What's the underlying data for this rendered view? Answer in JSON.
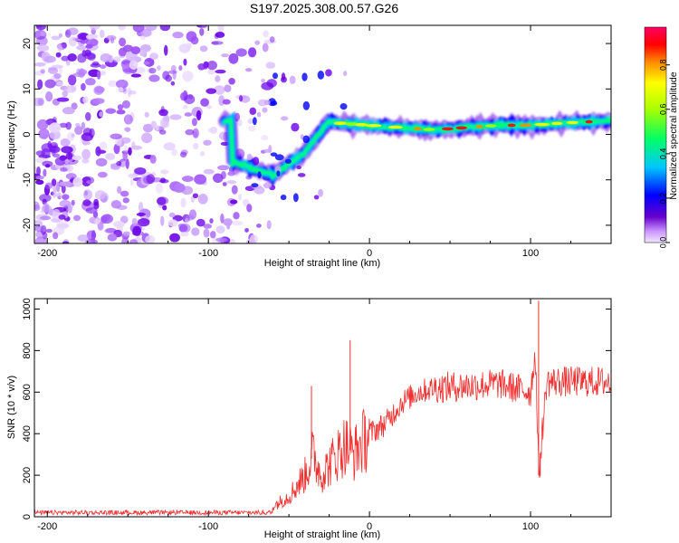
{
  "title": "S197.2025.308.00.57.G26",
  "chart_data": [
    {
      "type": "heatmap",
      "xlabel": "Height of straight line (km)",
      "ylabel": "Frequency (Hz)",
      "xlim": [
        -208,
        150
      ],
      "ylim": [
        -24,
        24
      ],
      "xticks": [
        -200,
        -100,
        0,
        100
      ],
      "yticks": [
        -20,
        -10,
        0,
        10,
        20
      ],
      "colorbar": {
        "label": "Normalized spectral amplitude",
        "ticks": [
          "0.0",
          "0.2",
          "0.4",
          "0.6",
          "0.8"
        ],
        "range": [
          0,
          0.97
        ]
      },
      "description_points": {
        "noise_region_x": [
          -208,
          -60
        ],
        "ridge_x": [
          -85,
          -60,
          -40,
          -25,
          -20,
          0,
          20,
          40,
          60,
          80,
          100,
          120,
          150
        ],
        "ridge_freq": [
          -6,
          -9,
          -4,
          3,
          2.5,
          2,
          1.5,
          1,
          1.5,
          2,
          2,
          2.5,
          3
        ]
      }
    },
    {
      "type": "line",
      "xlabel": "Height of straight line (km)",
      "ylabel": "SNR (10 * v/v)",
      "xlim": [
        -208,
        150
      ],
      "ylim": [
        0,
        1050
      ],
      "xticks": [
        -200,
        -100,
        0,
        100
      ],
      "yticks": [
        0,
        200,
        400,
        600,
        800,
        1000
      ],
      "series": [
        {
          "name": "SNR",
          "x": [
            -208,
            -150,
            -100,
            -70,
            -60,
            -50,
            -40,
            -35,
            -30,
            -25,
            -20,
            -15,
            -10,
            -5,
            0,
            10,
            20,
            30,
            40,
            60,
            80,
            100,
            103,
            105,
            110,
            130,
            150
          ],
          "y": [
            25,
            25,
            25,
            30,
            50,
            100,
            200,
            300,
            200,
            250,
            300,
            350,
            300,
            350,
            400,
            450,
            550,
            600,
            620,
            630,
            640,
            600,
            800,
            200,
            650,
            650,
            650
          ],
          "spikes": [
            {
              "x": -36,
              "y": 630
            },
            {
              "x": -12,
              "y": 850
            },
            {
              "x": 105,
              "y": 1040
            },
            {
              "x": 106,
              "y": 195
            }
          ],
          "color": "#ef3030"
        }
      ]
    }
  ]
}
